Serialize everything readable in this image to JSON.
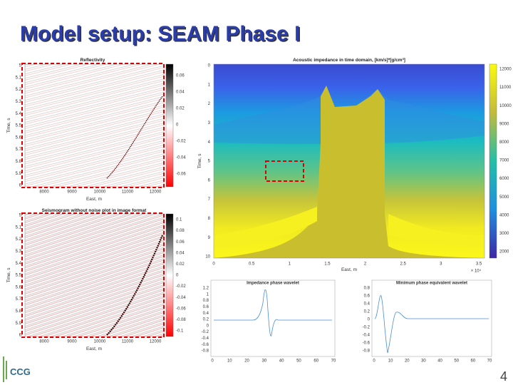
{
  "title": "Model setup: SEAM Phase I",
  "reflectivity": {
    "title": "Reflectivity",
    "ylabel": "Time, s",
    "xlabel": "East, m",
    "yticks": [
      5,
      5.1,
      5.2,
      5.3,
      5.4,
      5.5,
      5.6,
      5.7,
      5.8,
      5.9,
      6
    ],
    "xticks": [
      8000,
      9000,
      10000,
      11000,
      12000
    ],
    "cbar": [
      0.06,
      0.04,
      0.02,
      0,
      -0.02,
      -0.04,
      -0.06
    ]
  },
  "seismogram": {
    "title": "Seismogram without noise plot in image format",
    "ylabel": "Time, s",
    "xlabel": "East, m",
    "yticks": [
      5,
      5.1,
      5.2,
      5.3,
      5.4,
      5.5,
      5.6,
      5.7,
      5.8,
      5.9,
      6
    ],
    "xticks": [
      8000,
      9000,
      10000,
      11000,
      12000
    ],
    "cbar": [
      0.1,
      0.08,
      0.06,
      0.04,
      0.02,
      0,
      -0.02,
      -0.04,
      -0.06,
      -0.08,
      -0.1
    ]
  },
  "impedance": {
    "title": "Acoustic impedance in time domain, [km/s]*[g/cm³]",
    "ylabel": "Time, s",
    "xlabel": "East, m",
    "xscale": "× 10⁴",
    "yticks": [
      0,
      1,
      2,
      3,
      4,
      5,
      6,
      7,
      8,
      9,
      10
    ],
    "xticks": [
      0,
      0.5,
      1,
      1.5,
      2,
      2.5,
      3,
      3.5
    ],
    "cbar": [
      12000,
      11000,
      10000,
      9000,
      8000,
      7000,
      6000,
      5000,
      4000,
      3000,
      2000
    ]
  },
  "wavelet_zero": {
    "title": "Impedance phase wavelet",
    "yticks": [
      1.2,
      1,
      0.8,
      0.6,
      0.4,
      0.2,
      0,
      -0.2,
      -0.4,
      -0.6,
      -0.8
    ],
    "xticks": [
      0,
      10,
      20,
      30,
      40,
      50,
      60,
      70
    ]
  },
  "wavelet_min": {
    "title": "Minimum phase equivalent wavelet",
    "yticks": [
      0.8,
      0.6,
      0.4,
      0.2,
      0,
      -0.2,
      -0.4,
      -0.6,
      -0.8
    ],
    "xticks": [
      0,
      10,
      20,
      30,
      40,
      50,
      60,
      70
    ]
  },
  "logo": "CCG",
  "page_number": "4"
}
